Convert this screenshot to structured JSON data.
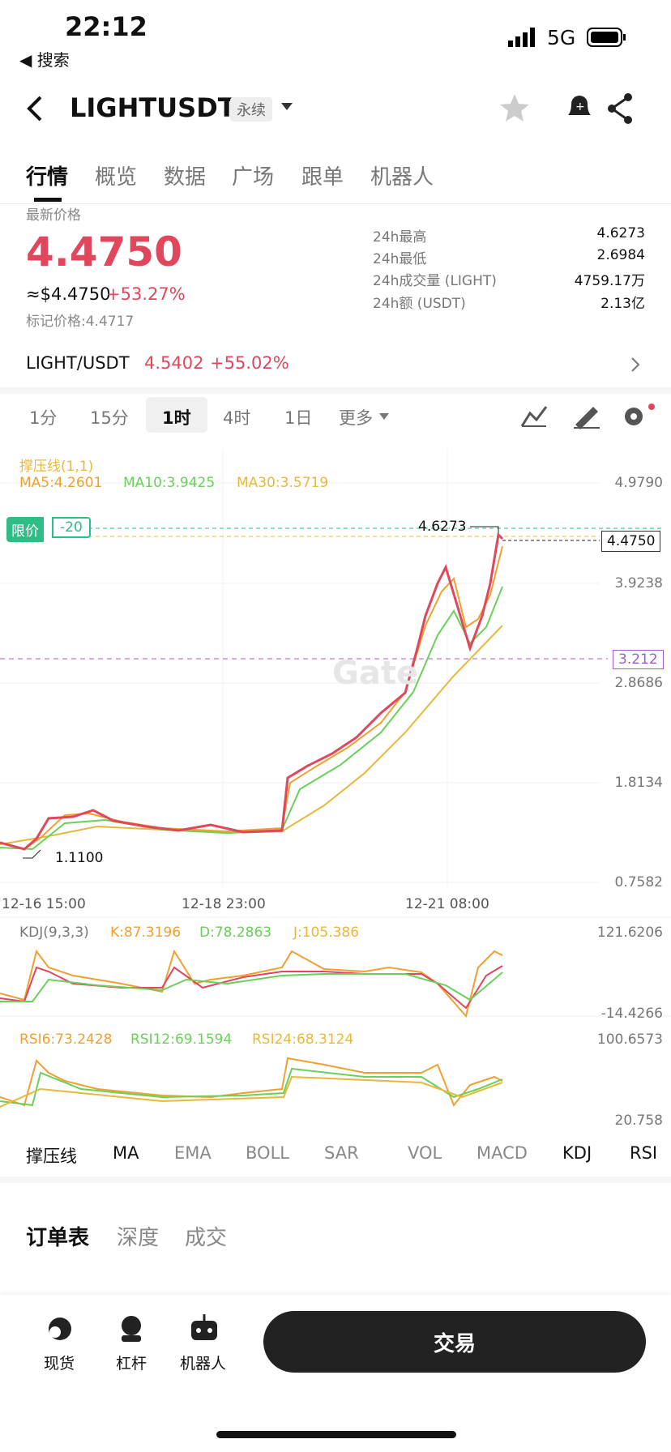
{
  "status_bar": {
    "time": "22:12",
    "back": "◀ 搜索",
    "network": "5G"
  },
  "header": {
    "symbol": "LIGHTUSDT",
    "badge": "永续"
  },
  "tabs": [
    "行情",
    "概览",
    "数据",
    "广场",
    "跟单",
    "机器人"
  ],
  "price": {
    "label": "最新价格",
    "last": "4.4750",
    "usd": "≈$4.4750",
    "change": "+53.27%",
    "mark": "标记价格:4.4717"
  },
  "stats": [
    {
      "label": "24h最高",
      "value": "4.6273"
    },
    {
      "label": "24h最低",
      "value": "2.6984"
    },
    {
      "label": "24h成交量 (LIGHT)",
      "value": "4759.17万"
    },
    {
      "label": "24h额 (USDT)",
      "value": "2.13亿"
    }
  ],
  "spot": {
    "pair": "LIGHT/USDT",
    "price": "4.5402",
    "change": "+55.02%"
  },
  "intervals": [
    "1分",
    "15分",
    "1时",
    "4时",
    "1日",
    "更多"
  ],
  "chart": {
    "indicator": "撑压线(1,1)",
    "ma": [
      "MA5:4.2601",
      "MA10:3.9425",
      "MA30:3.5719"
    ],
    "yaxis": [
      "4.9790",
      "3.9238",
      "2.8686",
      "1.8134",
      "0.7582"
    ],
    "limit_tag": "限价",
    "limit_value": "-20",
    "high": "4.6273",
    "low": "1.1100",
    "current": "4.4750",
    "line_level": "3.212",
    "dates": [
      "12-16 15:00",
      "12-18 23:00",
      "12-21 08:00"
    ],
    "watermark": "Gate"
  },
  "kdj": {
    "title": "KDJ(9,3,3)",
    "k": "K:87.3196",
    "d": "D:78.2863",
    "j": "J:105.386",
    "max": "121.6206",
    "min": "-14.4266"
  },
  "rsi": {
    "r6": "RSI6:73.2428",
    "r12": "RSI12:69.1594",
    "r24": "RSI24:68.3124",
    "max": "100.6573",
    "min": "20.758"
  },
  "indicators": [
    "撑压线",
    "MA",
    "EMA",
    "BOLL",
    "SAR",
    "VOL",
    "MACD",
    "KDJ",
    "RSI"
  ],
  "order_tabs": [
    "订单表",
    "深度",
    "成交"
  ],
  "bottom_nav": [
    "现货",
    "杠杆",
    "机器人"
  ],
  "trade_button": "交易"
}
